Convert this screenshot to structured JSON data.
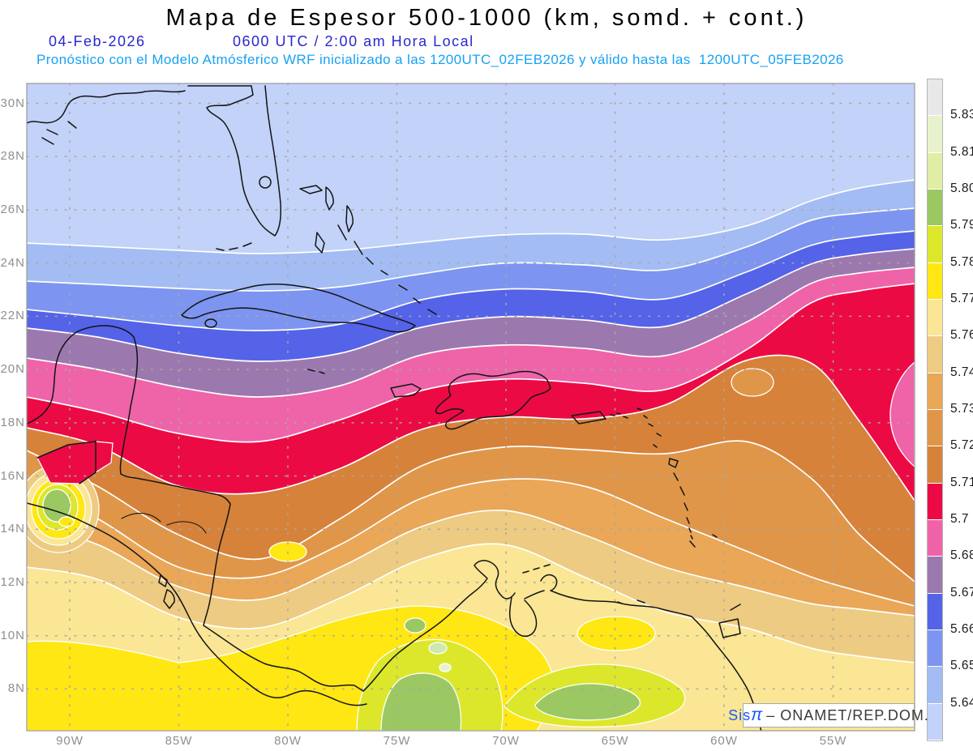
{
  "header": {
    "title": "Mapa de Espesor 500-1000 (km, somd. + cont.)",
    "date": "04-Feb-2026",
    "time": "0600 UTC / 2:00 am Hora Local",
    "forecast": "Pronóstico con el Modelo Atmósferico WRF inicializado a las 1200UTC_02FEB2026 y válido hasta las  1200UTC_05FEB2026"
  },
  "map": {
    "lat_labels": [
      "30N",
      "28N",
      "26N",
      "24N",
      "22N",
      "20N",
      "18N",
      "16N",
      "14N",
      "12N",
      "10N",
      "8N"
    ],
    "lon_labels": [
      "90W",
      "85W",
      "80W",
      "75W",
      "70W",
      "65W",
      "60W",
      "55W"
    ]
  },
  "colorbar": {
    "labels": [
      "5.831",
      "5.819",
      "5.807",
      "5.795",
      "5.783",
      "5.772",
      "5.76",
      "5.748",
      "5.736",
      "5.724",
      "5.712",
      "5.7",
      "5.688",
      "5.676",
      "5.664",
      "5.652",
      "5.64"
    ],
    "colors": [
      "#e8e8e8",
      "#e7f2cc",
      "#dfeea4",
      "#9bc862",
      "#dce72b",
      "#ffe713",
      "#fae694",
      "#edcb82",
      "#e9a757",
      "#e09649",
      "#d6823a",
      "#ec0a45",
      "#ef63a9",
      "#9b79af",
      "#5463e8",
      "#7d95f0",
      "#a3bcf4",
      "#c2d2f8"
    ]
  },
  "palette": {
    "blue_lightest": "#c2d2f8",
    "blue_light": "#a3bcf4",
    "blue_mid": "#7d95f0",
    "blue_strong": "#5463e8",
    "purple": "#9b79af",
    "pink": "#ef63a9",
    "red": "#ec0a45",
    "orange_dark": "#d6823a",
    "orange_mid": "#e09649",
    "orange_light": "#e9a757",
    "tan": "#edcb82",
    "pale_yellow": "#fae694",
    "yellow": "#ffe713",
    "chartreuse": "#dce72b",
    "green": "#9bc862",
    "mint": "#cde8b0",
    "pale_green": "#e7f2cc",
    "gray_top": "#e8e8e8"
  },
  "attribution": {
    "app": "Sis",
    "pi": "π",
    "dash": "–",
    "org": " ONAMET/REP.DOM."
  }
}
